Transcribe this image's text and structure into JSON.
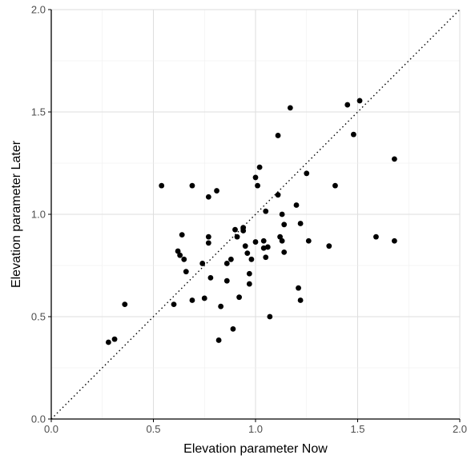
{
  "chart_data": {
    "type": "scatter",
    "title": "",
    "xlabel": "Elevation parameter Now",
    "ylabel": "Elevation parameter Later",
    "xlim": [
      0.0,
      2.0
    ],
    "ylim": [
      0.0,
      2.0
    ],
    "x_ticks": [
      "0.0",
      "0.5",
      "1.0",
      "1.5",
      "2.0"
    ],
    "y_ticks": [
      "0.0",
      "0.5",
      "1.0",
      "1.5",
      "2.0"
    ],
    "grid": true,
    "reference_line": {
      "type": "identity",
      "style": "dotted"
    },
    "point_color": "#000000",
    "points": [
      {
        "x": 0.28,
        "y": 0.375
      },
      {
        "x": 0.31,
        "y": 0.39
      },
      {
        "x": 0.36,
        "y": 0.56
      },
      {
        "x": 0.54,
        "y": 1.14
      },
      {
        "x": 0.6,
        "y": 0.56
      },
      {
        "x": 0.62,
        "y": 0.82
      },
      {
        "x": 0.63,
        "y": 0.8
      },
      {
        "x": 0.64,
        "y": 0.9
      },
      {
        "x": 0.65,
        "y": 0.78
      },
      {
        "x": 0.66,
        "y": 0.72
      },
      {
        "x": 0.69,
        "y": 1.14
      },
      {
        "x": 0.69,
        "y": 0.58
      },
      {
        "x": 0.74,
        "y": 0.76
      },
      {
        "x": 0.75,
        "y": 0.59
      },
      {
        "x": 0.77,
        "y": 1.085
      },
      {
        "x": 0.77,
        "y": 0.89
      },
      {
        "x": 0.77,
        "y": 0.86
      },
      {
        "x": 0.78,
        "y": 0.69
      },
      {
        "x": 0.81,
        "y": 1.115
      },
      {
        "x": 0.82,
        "y": 0.385
      },
      {
        "x": 0.83,
        "y": 0.55
      },
      {
        "x": 0.86,
        "y": 0.76
      },
      {
        "x": 0.86,
        "y": 0.675
      },
      {
        "x": 0.88,
        "y": 0.78
      },
      {
        "x": 0.89,
        "y": 0.44
      },
      {
        "x": 0.9,
        "y": 0.925
      },
      {
        "x": 0.91,
        "y": 0.89
      },
      {
        "x": 0.92,
        "y": 0.595
      },
      {
        "x": 0.94,
        "y": 0.935
      },
      {
        "x": 0.94,
        "y": 0.92
      },
      {
        "x": 0.95,
        "y": 0.845
      },
      {
        "x": 0.96,
        "y": 0.81
      },
      {
        "x": 0.97,
        "y": 0.71
      },
      {
        "x": 0.97,
        "y": 0.66
      },
      {
        "x": 0.98,
        "y": 0.78
      },
      {
        "x": 1.0,
        "y": 1.18
      },
      {
        "x": 1.0,
        "y": 0.865
      },
      {
        "x": 1.01,
        "y": 1.14
      },
      {
        "x": 1.02,
        "y": 1.23
      },
      {
        "x": 1.04,
        "y": 0.87
      },
      {
        "x": 1.04,
        "y": 0.835
      },
      {
        "x": 1.05,
        "y": 0.79
      },
      {
        "x": 1.05,
        "y": 1.015
      },
      {
        "x": 1.06,
        "y": 0.84
      },
      {
        "x": 1.07,
        "y": 0.5
      },
      {
        "x": 1.11,
        "y": 1.385
      },
      {
        "x": 1.11,
        "y": 1.095
      },
      {
        "x": 1.12,
        "y": 0.89
      },
      {
        "x": 1.13,
        "y": 1.0
      },
      {
        "x": 1.13,
        "y": 0.87
      },
      {
        "x": 1.14,
        "y": 0.815
      },
      {
        "x": 1.14,
        "y": 0.95
      },
      {
        "x": 1.17,
        "y": 1.52
      },
      {
        "x": 1.2,
        "y": 1.045
      },
      {
        "x": 1.21,
        "y": 0.64
      },
      {
        "x": 1.22,
        "y": 0.955
      },
      {
        "x": 1.22,
        "y": 0.58
      },
      {
        "x": 1.25,
        "y": 1.2
      },
      {
        "x": 1.26,
        "y": 0.87
      },
      {
        "x": 1.36,
        "y": 0.845
      },
      {
        "x": 1.39,
        "y": 1.14
      },
      {
        "x": 1.45,
        "y": 1.535
      },
      {
        "x": 1.48,
        "y": 1.39
      },
      {
        "x": 1.51,
        "y": 1.555
      },
      {
        "x": 1.59,
        "y": 0.89
      },
      {
        "x": 1.68,
        "y": 1.27
      },
      {
        "x": 1.68,
        "y": 0.87
      }
    ]
  }
}
